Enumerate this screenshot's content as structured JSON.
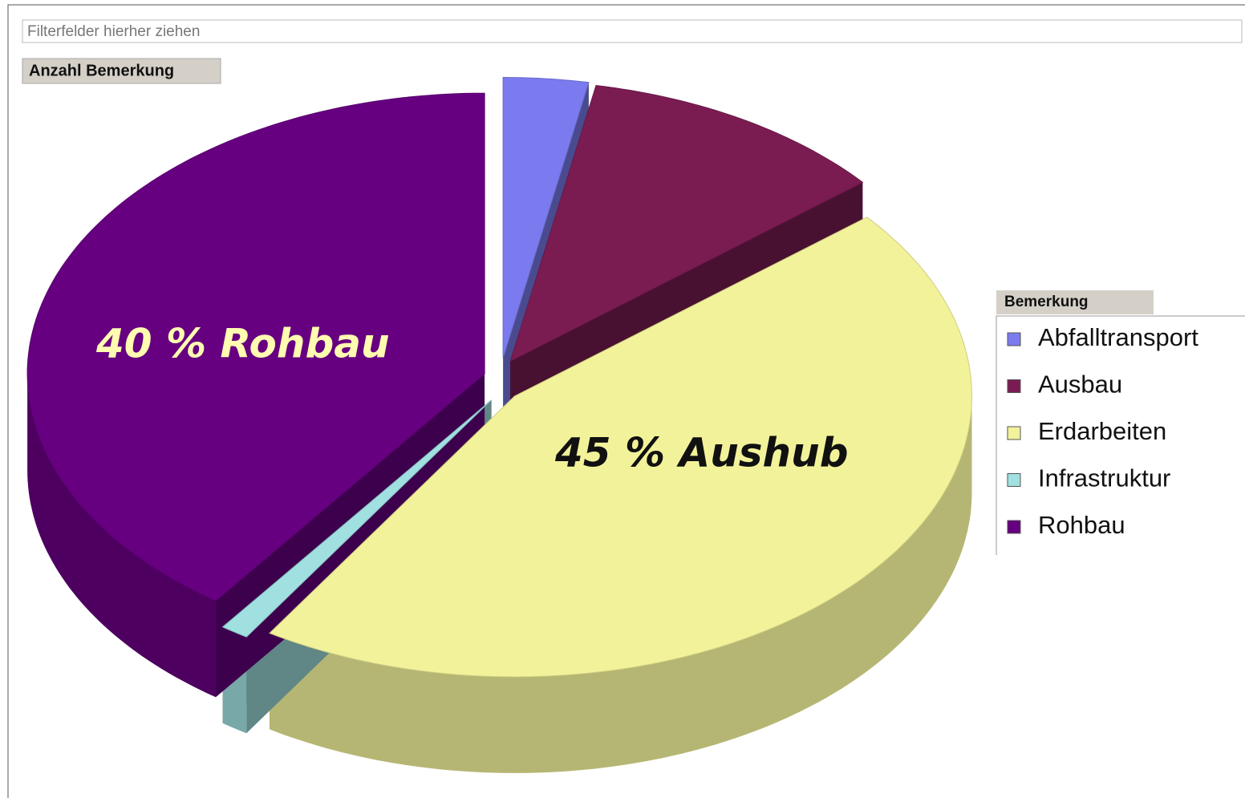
{
  "filter_hint": "Filterfelder hierher ziehen",
  "chart_data": {
    "type": "pie",
    "title": "Anzahl Bemerkung",
    "legend_title": "Bemerkung",
    "categories": [
      "Abfalltransport",
      "Ausbau",
      "Erdarbeiten",
      "Infrastruktur",
      "Rohbau"
    ],
    "values": [
      3,
      11,
      45,
      1,
      40
    ],
    "colors": [
      "#7b7bef",
      "#7a1c52",
      "#f2f29a",
      "#a0e0e0",
      "#660080"
    ],
    "annotations": [
      "40 % Rohbau",
      "45 % Aushub"
    ],
    "legend": "right"
  }
}
